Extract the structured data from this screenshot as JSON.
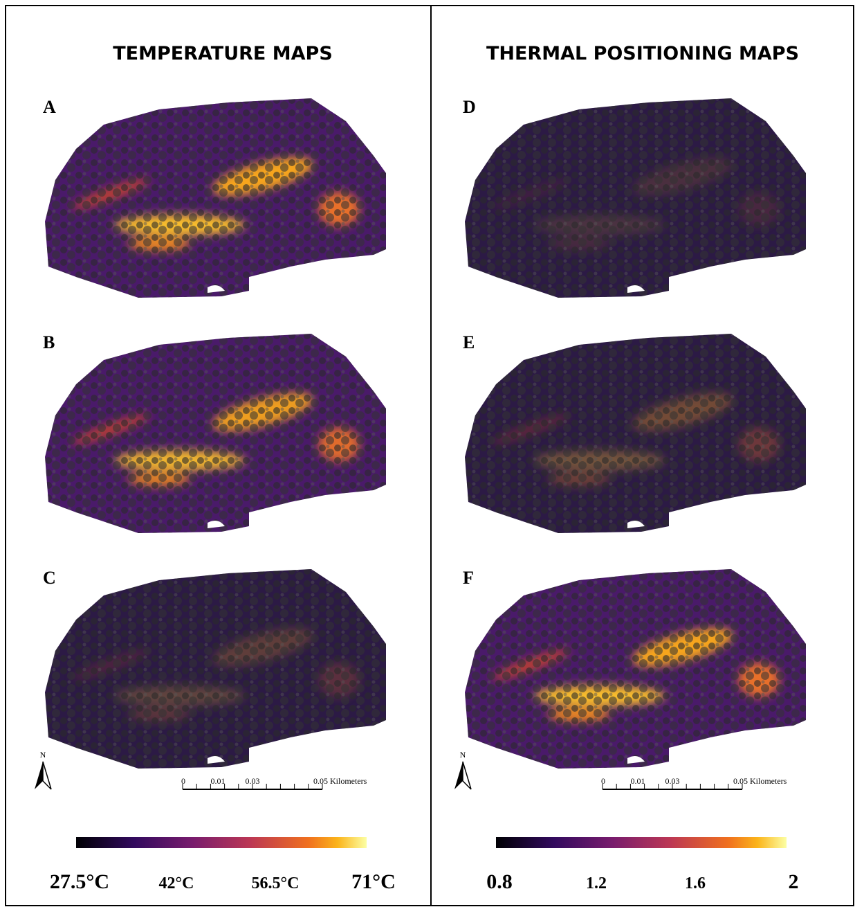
{
  "left_panel": {
    "title": "TEMPERATURE MAPS",
    "maps": [
      {
        "label": "A"
      },
      {
        "label": "B"
      },
      {
        "label": "C"
      }
    ],
    "north": "N",
    "scale_bar": {
      "ticks": [
        "0",
        "0.01",
        "0.03",
        "0.05 Kilometers"
      ]
    },
    "colorbar": {
      "labels": [
        "27.5°C",
        "42°C",
        "56.5°C",
        "71°C"
      ]
    }
  },
  "right_panel": {
    "title": "THERMAL POSITIONING MAPS",
    "maps": [
      {
        "label": "D"
      },
      {
        "label": "E"
      },
      {
        "label": "F"
      }
    ],
    "north": "N",
    "scale_bar": {
      "ticks": [
        "0",
        "0.01",
        "0.03",
        "0.05 Kilometers"
      ]
    },
    "colorbar": {
      "labels": [
        "0.8",
        "1.2",
        "1.6",
        "2"
      ]
    }
  }
}
